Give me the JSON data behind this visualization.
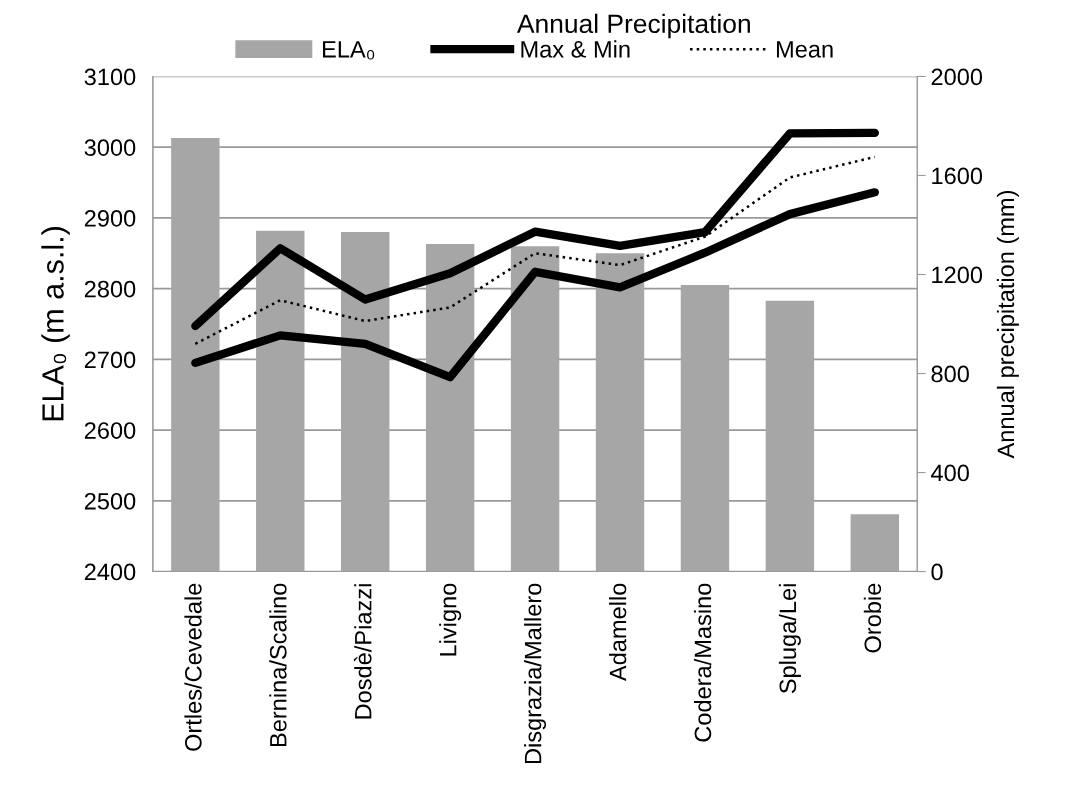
{
  "chart_data": {
    "type": "bar",
    "categories": [
      "Ortles/Cevedale",
      "Bernina/Scalino",
      "Dosdè/Piazzi",
      "Livigno",
      "Disgrazia/Mallero",
      "Adamello",
      "Codera/Masino",
      "Spluga/Lei",
      "Orobie"
    ],
    "series": [
      {
        "name": "ELA₀",
        "color": "#a6a6a6",
        "values": [
          3013,
          2882,
          2880,
          2863,
          2860,
          2850,
          2805,
          2783,
          2481
        ]
      },
      {
        "name": "Max & Min",
        "type": "line",
        "axis": "y2",
        "color": "#000000",
        "line_style": "solid",
        "values": [
          992,
          1306,
          1099,
          1205,
          1373,
          1316,
          1371,
          1770,
          1772
        ]
      },
      {
        "type": "line",
        "axis": "y2",
        "color": "#000000",
        "line_style": "solid",
        "values": [
          843,
          954,
          920,
          785,
          1211,
          1148,
          1288,
          1444,
          1532
        ]
      },
      {
        "name": "Mean",
        "type": "line",
        "axis": "y2",
        "color": "#000000",
        "line_style": "dotted",
        "values": [
          920,
          1096,
          1012,
          1067,
          1286,
          1238,
          1353,
          1592,
          1675
        ]
      }
    ],
    "ylabel": "ELA₀ (m a.s.l.)",
    "y2label": "Annual precipitation (mm)",
    "legend_title": "Annual Precipitation",
    "ylim": [
      2400,
      3100
    ],
    "yticks": [
      2400,
      2500,
      2600,
      2700,
      2800,
      2900,
      3000,
      3100
    ],
    "y2lim": [
      0,
      2000
    ],
    "y2ticks": [
      0,
      400,
      800,
      1200,
      1600,
      2000
    ],
    "grid": "y",
    "legend": "top",
    "marker": "none"
  }
}
